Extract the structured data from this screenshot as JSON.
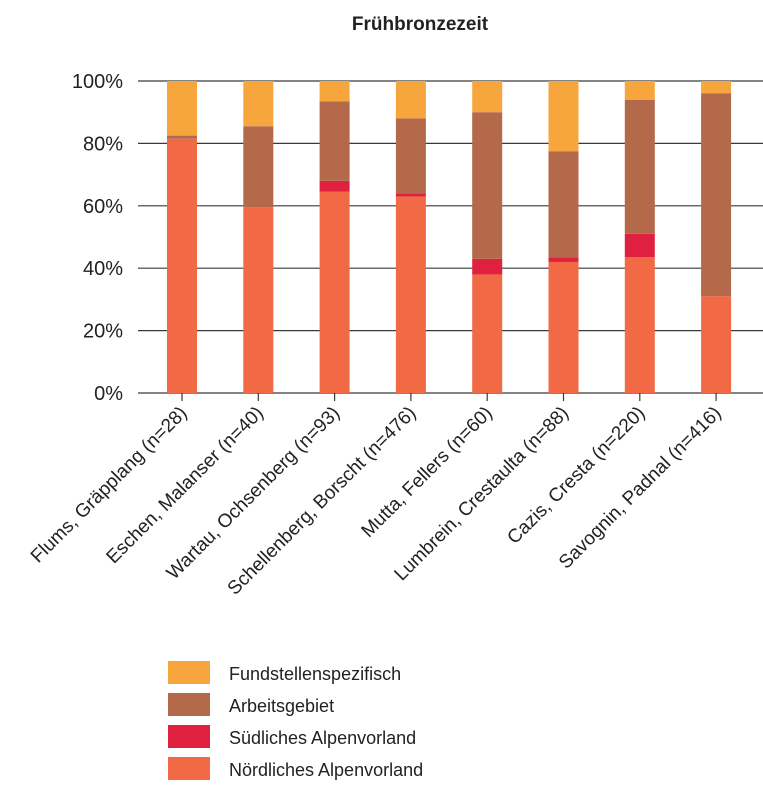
{
  "chart_data": {
    "type": "bar",
    "stacked": true,
    "title": "Frühbronzezeit",
    "xlabel": "",
    "ylabel": "",
    "ylim": [
      0,
      100
    ],
    "yticks": [
      "0%",
      "20%",
      "40%",
      "60%",
      "80%",
      "100%"
    ],
    "grid": "horizontal",
    "legend_position": "bottom",
    "categories": [
      "Flums, Gräpplang (n=28)",
      "Eschen, Malanser (n=40)",
      "Wartau, Ochsenberg (n=93)",
      "Schellenberg, Borscht (n=476)",
      "Mutta, Fellers (n=60)",
      "Lumbrein, Crestaulta (n=88)",
      "Cazis, Cresta (n=220)",
      "Savognin, Padnal (n=416)"
    ],
    "series": [
      {
        "name": "Nördliches Alpenvorland",
        "color": "#f26a45",
        "values": [
          81.5,
          59.5,
          64.5,
          63,
          38,
          42,
          43.5,
          31
        ]
      },
      {
        "name": "Südliches Alpenvorland",
        "color": "#e0203f",
        "values": [
          0,
          0,
          3.5,
          1,
          5,
          1.5,
          7.5,
          0
        ]
      },
      {
        "name": "Arbeitsgebiet",
        "color": "#b3694a",
        "values": [
          1,
          26,
          25.5,
          24,
          47,
          34,
          43,
          65
        ]
      },
      {
        "name": "Fundstellenspezifisch",
        "color": "#f7a63e",
        "values": [
          17.5,
          14.5,
          6.5,
          12,
          10,
          22.5,
          6,
          4
        ]
      }
    ],
    "legend_order": [
      "Fundstellenspezifisch",
      "Arbeitsgebiet",
      "Südliches Alpenvorland",
      "Nördliches Alpenvorland"
    ]
  }
}
